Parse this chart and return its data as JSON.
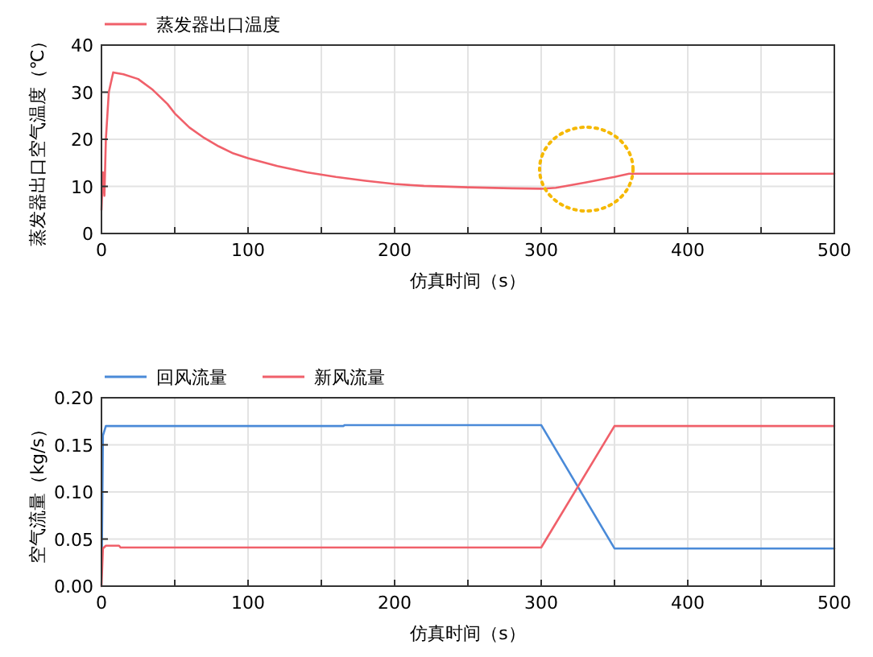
{
  "chart_data": [
    {
      "type": "line",
      "xlabel": "仿真时间（s）",
      "ylabel": "蒸发器出口空气温度（℃）",
      "legend": "top left",
      "grid": true,
      "xlim": [
        0,
        500
      ],
      "ylim": [
        0,
        40
      ],
      "xticks": [
        0,
        {
          "value": 50,
          "label": null
        },
        100,
        {
          "value": 150,
          "label": null
        },
        200,
        {
          "value": 250,
          "label": null
        },
        300,
        {
          "value": 350,
          "label": null
        },
        400,
        {
          "value": 450,
          "label": null
        },
        500
      ],
      "yticks": [
        0,
        10,
        20,
        30,
        40
      ],
      "series": [
        {
          "name": "蒸发器出口温度",
          "color": "#f0606a",
          "x": [
            0,
            1,
            2,
            3,
            5,
            8,
            15,
            25,
            35,
            45,
            50,
            60,
            70,
            80,
            90,
            100,
            120,
            140,
            160,
            180,
            200,
            220,
            250,
            280,
            300,
            310,
            330,
            350,
            360,
            400,
            500
          ],
          "values": [
            5,
            13,
            8,
            20,
            30,
            34.2,
            33.8,
            32.8,
            30.5,
            27.5,
            25.5,
            22.5,
            20.3,
            18.5,
            17,
            16,
            14.3,
            13,
            12,
            11.2,
            10.5,
            10.1,
            9.8,
            9.6,
            9.5,
            9.7,
            10.8,
            12,
            12.7,
            12.7,
            12.7
          ]
        }
      ]
    },
    {
      "type": "line",
      "xlabel": "仿真时间（s）",
      "ylabel": "空气流量（kg/s）",
      "legend": "top left",
      "grid": true,
      "xlim": [
        0,
        500
      ],
      "ylim": [
        0,
        0.2
      ],
      "xticks": [
        0,
        {
          "value": 50,
          "label": null
        },
        100,
        {
          "value": 150,
          "label": null
        },
        200,
        {
          "value": 250,
          "label": null
        },
        300,
        {
          "value": 350,
          "label": null
        },
        400,
        {
          "value": 450,
          "label": null
        },
        500
      ],
      "yticks": [
        {
          "value": 0,
          "label": "0.00"
        },
        {
          "value": 0.05,
          "label": "0.05"
        },
        {
          "value": 0.1,
          "label": "0.10"
        },
        {
          "value": 0.15,
          "label": "0.15"
        },
        {
          "value": 0.2,
          "label": "0.20"
        }
      ],
      "series": [
        {
          "name": "回风流量",
          "color": "#4a8ad8",
          "x": [
            0.3,
            1,
            3,
            165,
            166,
            300,
            350,
            500
          ],
          "values": [
            0.04,
            0.16,
            0.17,
            0.17,
            0.171,
            0.171,
            0.04,
            0.04
          ]
        },
        {
          "name": "新风流量",
          "color": "#f0606a",
          "x": [
            0,
            1,
            3,
            12,
            13,
            300,
            350,
            500
          ],
          "values": [
            0,
            0.04,
            0.043,
            0.043,
            0.041,
            0.041,
            0.17,
            0.17
          ]
        }
      ]
    }
  ]
}
